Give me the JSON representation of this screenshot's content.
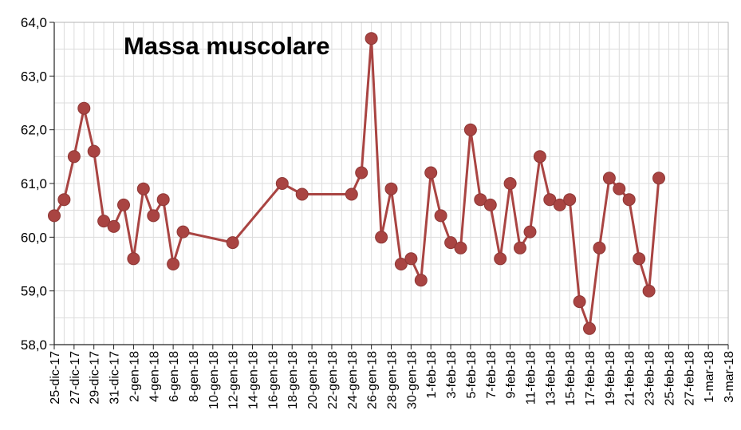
{
  "chart_data": {
    "type": "line",
    "title": "Massa muscolare",
    "xlabel": "",
    "ylabel": "",
    "ylim": [
      58.0,
      64.0
    ],
    "y_ticks": [
      "58,0",
      "59,0",
      "60,0",
      "61,0",
      "62,0",
      "63,0",
      "64,0"
    ],
    "x_range": [
      "2017-12-25",
      "2018-03-03"
    ],
    "x_ticks": [
      "25-dic-17",
      "27-dic-17",
      "29-dic-17",
      "31-dic-17",
      "2-gen-18",
      "4-gen-18",
      "6-gen-18",
      "8-gen-18",
      "10-gen-18",
      "12-gen-18",
      "14-gen-18",
      "16-gen-18",
      "18-gen-18",
      "20-gen-18",
      "22-gen-18",
      "24-gen-18",
      "26-gen-18",
      "28-gen-18",
      "30-gen-18",
      "1-feb-18",
      "3-feb-18",
      "5-feb-18",
      "7-feb-18",
      "9-feb-18",
      "11-feb-18",
      "13-feb-18",
      "15-feb-18",
      "17-feb-18",
      "19-feb-18",
      "21-feb-18",
      "23-feb-18",
      "25-feb-18",
      "27-feb-18",
      "1-mar-18",
      "3-mar-18"
    ],
    "grid": true,
    "line_color": "#a94442",
    "series": [
      {
        "points": [
          {
            "x": "2017-12-25",
            "y": 60.4
          },
          {
            "x": "2017-12-26",
            "y": 60.7
          },
          {
            "x": "2017-12-27",
            "y": 61.5
          },
          {
            "x": "2017-12-28",
            "y": 62.4
          },
          {
            "x": "2017-12-29",
            "y": 61.6
          },
          {
            "x": "2017-12-30",
            "y": 60.3
          },
          {
            "x": "2017-12-31",
            "y": 60.2
          },
          {
            "x": "2018-01-01",
            "y": 60.6
          },
          {
            "x": "2018-01-02",
            "y": 59.6
          },
          {
            "x": "2018-01-03",
            "y": 60.9
          },
          {
            "x": "2018-01-04",
            "y": 60.4
          },
          {
            "x": "2018-01-05",
            "y": 60.7
          },
          {
            "x": "2018-01-06",
            "y": 59.5
          },
          {
            "x": "2018-01-07",
            "y": 60.1
          },
          {
            "x": "2018-01-12",
            "y": 59.9
          },
          {
            "x": "2018-01-17",
            "y": 61.0
          },
          {
            "x": "2018-01-19",
            "y": 60.8
          },
          {
            "x": "2018-01-24",
            "y": 60.8
          },
          {
            "x": "2018-01-25",
            "y": 61.2
          },
          {
            "x": "2018-01-26",
            "y": 63.7
          },
          {
            "x": "2018-01-27",
            "y": 60.0
          },
          {
            "x": "2018-01-28",
            "y": 60.9
          },
          {
            "x": "2018-01-29",
            "y": 59.5
          },
          {
            "x": "2018-01-30",
            "y": 59.6
          },
          {
            "x": "2018-01-31",
            "y": 59.2
          },
          {
            "x": "2018-02-01",
            "y": 61.2
          },
          {
            "x": "2018-02-02",
            "y": 60.4
          },
          {
            "x": "2018-02-03",
            "y": 59.9
          },
          {
            "x": "2018-02-04",
            "y": 59.8
          },
          {
            "x": "2018-02-05",
            "y": 62.0
          },
          {
            "x": "2018-02-06",
            "y": 60.7
          },
          {
            "x": "2018-02-07",
            "y": 60.6
          },
          {
            "x": "2018-02-08",
            "y": 59.6
          },
          {
            "x": "2018-02-09",
            "y": 61.0
          },
          {
            "x": "2018-02-10",
            "y": 59.8
          },
          {
            "x": "2018-02-11",
            "y": 60.1
          },
          {
            "x": "2018-02-12",
            "y": 61.5
          },
          {
            "x": "2018-02-13",
            "y": 60.7
          },
          {
            "x": "2018-02-14",
            "y": 60.6
          },
          {
            "x": "2018-02-15",
            "y": 60.7
          },
          {
            "x": "2018-02-16",
            "y": 58.8
          },
          {
            "x": "2018-02-17",
            "y": 58.3
          },
          {
            "x": "2018-02-18",
            "y": 59.8
          },
          {
            "x": "2018-02-19",
            "y": 61.1
          },
          {
            "x": "2018-02-20",
            "y": 60.9
          },
          {
            "x": "2018-02-21",
            "y": 60.7
          },
          {
            "x": "2018-02-22",
            "y": 59.6
          },
          {
            "x": "2018-02-23",
            "y": 59.0
          },
          {
            "x": "2018-02-24",
            "y": 61.1
          }
        ]
      }
    ]
  }
}
